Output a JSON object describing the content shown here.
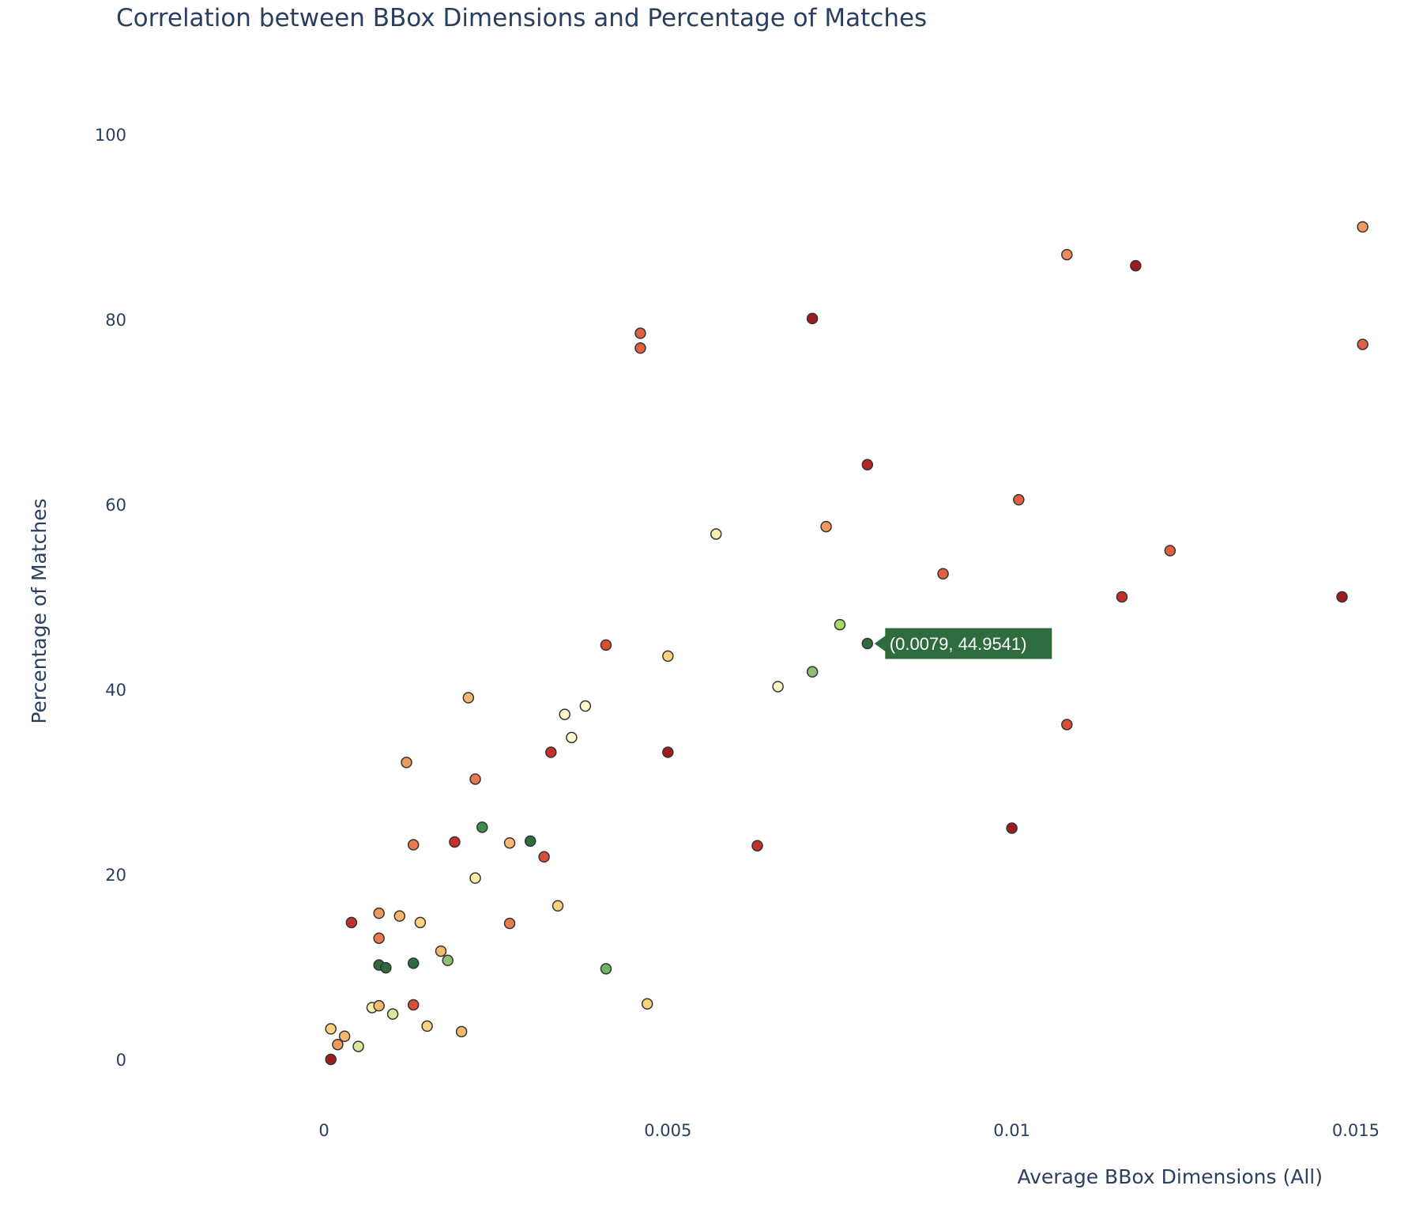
{
  "chart_data": {
    "type": "scatter",
    "title": "Correlation between BBox Dimensions and Percentage of Matches",
    "xlabel": "Average BBox Dimensions (All)",
    "ylabel": "Percentage of Matches",
    "xlim": [
      -0.0026,
      0.0155
    ],
    "ylim": [
      -7,
      107
    ],
    "xticks": [
      0,
      0.005,
      0.01,
      0.015
    ],
    "xtick_labels": [
      "0",
      "0.005",
      "0.01",
      "0.015"
    ],
    "yticks": [
      0,
      20,
      40,
      60,
      80,
      100
    ],
    "ytick_labels": [
      "0",
      "20",
      "40",
      "60",
      "80",
      "100"
    ],
    "grid": false,
    "legend": "none",
    "hover": {
      "x": 0.0079,
      "y": 44.9541,
      "label": "(0.0079, 44.9541)",
      "color": "#2e6b3e"
    },
    "points": [
      {
        "x": 0.0001,
        "y": 0.0,
        "color": "#a01c1c"
      },
      {
        "x": 0.0001,
        "y": 3.3,
        "color": "#fbd37f"
      },
      {
        "x": 0.0002,
        "y": 1.6,
        "color": "#ef9a5c"
      },
      {
        "x": 0.0003,
        "y": 2.5,
        "color": "#f5b96e"
      },
      {
        "x": 0.0004,
        "y": 14.8,
        "color": "#c4302b"
      },
      {
        "x": 0.0005,
        "y": 1.4,
        "color": "#d8ea9a"
      },
      {
        "x": 0.0007,
        "y": 5.6,
        "color": "#f9efac"
      },
      {
        "x": 0.0008,
        "y": 5.8,
        "color": "#f5b96e"
      },
      {
        "x": 0.0008,
        "y": 10.2,
        "color": "#2e6b3e"
      },
      {
        "x": 0.0008,
        "y": 13.1,
        "color": "#e97a50"
      },
      {
        "x": 0.0008,
        "y": 15.8,
        "color": "#ef9a5c"
      },
      {
        "x": 0.0009,
        "y": 9.9,
        "color": "#2e6b3e"
      },
      {
        "x": 0.001,
        "y": 4.9,
        "color": "#d8ea9a"
      },
      {
        "x": 0.0011,
        "y": 15.5,
        "color": "#f5b96e"
      },
      {
        "x": 0.0012,
        "y": 32.1,
        "color": "#ef9a5c"
      },
      {
        "x": 0.0013,
        "y": 5.9,
        "color": "#d94e35"
      },
      {
        "x": 0.0013,
        "y": 10.4,
        "color": "#2e6b3e"
      },
      {
        "x": 0.0013,
        "y": 23.2,
        "color": "#e97a50"
      },
      {
        "x": 0.0014,
        "y": 14.8,
        "color": "#fbd37f"
      },
      {
        "x": 0.0015,
        "y": 3.6,
        "color": "#fbd37f"
      },
      {
        "x": 0.0017,
        "y": 11.7,
        "color": "#f5b96e"
      },
      {
        "x": 0.0018,
        "y": 10.7,
        "color": "#8cc06e"
      },
      {
        "x": 0.0019,
        "y": 23.5,
        "color": "#c4302b"
      },
      {
        "x": 0.002,
        "y": 3.0,
        "color": "#f5b96e"
      },
      {
        "x": 0.0021,
        "y": 39.1,
        "color": "#f5b96e"
      },
      {
        "x": 0.0022,
        "y": 19.6,
        "color": "#f9efac"
      },
      {
        "x": 0.0022,
        "y": 30.3,
        "color": "#e97a50"
      },
      {
        "x": 0.0023,
        "y": 25.1,
        "color": "#3d8f4b"
      },
      {
        "x": 0.0027,
        "y": 14.7,
        "color": "#e97a50"
      },
      {
        "x": 0.0027,
        "y": 23.4,
        "color": "#f5b96e"
      },
      {
        "x": 0.003,
        "y": 23.6,
        "color": "#2e6b3e"
      },
      {
        "x": 0.0032,
        "y": 21.9,
        "color": "#d94e35"
      },
      {
        "x": 0.0033,
        "y": 33.2,
        "color": "#c4302b"
      },
      {
        "x": 0.0034,
        "y": 16.6,
        "color": "#fbd37f"
      },
      {
        "x": 0.0035,
        "y": 37.3,
        "color": "#fff8c8"
      },
      {
        "x": 0.0036,
        "y": 34.8,
        "color": "#fff8c8"
      },
      {
        "x": 0.0038,
        "y": 38.2,
        "color": "#fff8c8"
      },
      {
        "x": 0.0041,
        "y": 9.8,
        "color": "#6db563"
      },
      {
        "x": 0.0041,
        "y": 44.8,
        "color": "#d94e35"
      },
      {
        "x": 0.0046,
        "y": 76.9,
        "color": "#e0603f"
      },
      {
        "x": 0.0046,
        "y": 78.5,
        "color": "#e0603f"
      },
      {
        "x": 0.0047,
        "y": 6.0,
        "color": "#fbd37f"
      },
      {
        "x": 0.005,
        "y": 33.2,
        "color": "#a01c1c"
      },
      {
        "x": 0.005,
        "y": 43.6,
        "color": "#fbd37f"
      },
      {
        "x": 0.0057,
        "y": 56.8,
        "color": "#f9efac"
      },
      {
        "x": 0.0063,
        "y": 23.1,
        "color": "#c4302b"
      },
      {
        "x": 0.0066,
        "y": 40.3,
        "color": "#fff8c8"
      },
      {
        "x": 0.0071,
        "y": 41.9,
        "color": "#8cc06e"
      },
      {
        "x": 0.0071,
        "y": 80.1,
        "color": "#a01c1c"
      },
      {
        "x": 0.0073,
        "y": 57.6,
        "color": "#ef9a5c"
      },
      {
        "x": 0.0075,
        "y": 47.0,
        "color": "#a6d96a"
      },
      {
        "x": 0.0079,
        "y": 44.9541,
        "color": "#2e6b3e"
      },
      {
        "x": 0.0079,
        "y": 64.3,
        "color": "#b42622"
      },
      {
        "x": 0.009,
        "y": 52.5,
        "color": "#e0603f"
      },
      {
        "x": 0.01,
        "y": 25.0,
        "color": "#a01c1c"
      },
      {
        "x": 0.0101,
        "y": 60.5,
        "color": "#e0603f"
      },
      {
        "x": 0.0108,
        "y": 36.2,
        "color": "#d94e35"
      },
      {
        "x": 0.0108,
        "y": 87.0,
        "color": "#ef8a5a"
      },
      {
        "x": 0.0116,
        "y": 50.0,
        "color": "#c4302b"
      },
      {
        "x": 0.0118,
        "y": 85.8,
        "color": "#a01c1c"
      },
      {
        "x": 0.0123,
        "y": 55.0,
        "color": "#e0603f"
      },
      {
        "x": 0.0148,
        "y": 50.0,
        "color": "#a01c1c"
      },
      {
        "x": 0.0151,
        "y": 77.3,
        "color": "#e0603f"
      },
      {
        "x": 0.0151,
        "y": 90.0,
        "color": "#ef9a5c"
      }
    ]
  }
}
